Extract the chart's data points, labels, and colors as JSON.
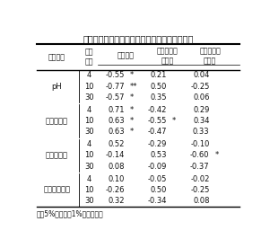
{
  "title": "表２．ソバ粉の脂質劣化指標と酵素の相関行列",
  "header_col1": "劣化指標",
  "header_col2": "貯蔵\n日数",
  "header_col3": "リパーゼ",
  "header_col4": "リポキシゲ\nナーゼ",
  "header_col5": "パーオキシ\nダーゼ",
  "row_groups": [
    {
      "label": "pH",
      "rows": [
        [
          "4",
          "-0.55",
          "*",
          "0.21",
          "",
          "0.04",
          ""
        ],
        [
          "10",
          "-0.77",
          "**",
          "0.50",
          "",
          "-0.25",
          ""
        ],
        [
          "30",
          "-0.57",
          "*",
          "0.35",
          "",
          "0.06",
          ""
        ]
      ]
    },
    {
      "label": "水溶性酸度",
      "rows": [
        [
          "4",
          "0.71",
          "*",
          "-0.42",
          "",
          "0.29",
          ""
        ],
        [
          "10",
          "0.63",
          "*",
          "-0.55",
          "*",
          "0.34",
          ""
        ],
        [
          "30",
          "0.63",
          "*",
          "-0.47",
          "",
          "0.33",
          ""
        ]
      ]
    },
    {
      "label": "過酸化物価",
      "rows": [
        [
          "4",
          "0.52",
          "",
          "-0.29",
          "",
          "-0.10",
          ""
        ],
        [
          "10",
          "-0.14",
          "",
          "0.53",
          "",
          "-0.60",
          "*"
        ],
        [
          "30",
          "0.08",
          "",
          "-0.09",
          "",
          "-0.37",
          ""
        ]
      ]
    },
    {
      "label": "カルボニル値",
      "rows": [
        [
          "4",
          "0.10",
          "",
          "-0.05",
          "",
          "-0.02",
          ""
        ],
        [
          "10",
          "-0.26",
          "",
          "0.50",
          "",
          "-0.25",
          ""
        ],
        [
          "30",
          "0.32",
          "",
          "-0.34",
          "",
          "0.08",
          ""
        ]
      ]
    }
  ],
  "footnote": "＊：5%，＊＊：1%水準で有意",
  "bg_color": "#ffffff",
  "text_color": "#111111",
  "title_fontsize": 7.0,
  "header_fontsize": 5.8,
  "data_fontsize": 6.0,
  "footnote_fontsize": 5.5
}
